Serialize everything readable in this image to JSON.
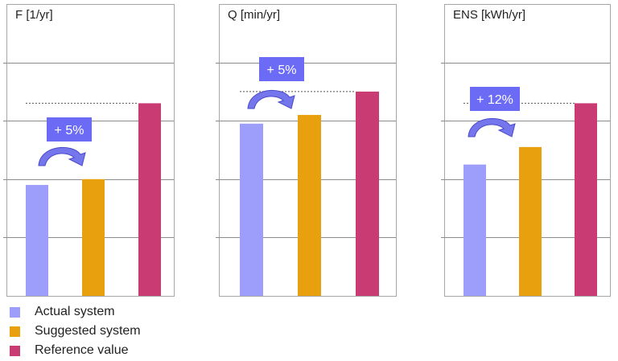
{
  "colors": {
    "actual": "#9d9dfc",
    "suggested": "#e8a00f",
    "reference": "#c93b73",
    "badge": "#6b6bf5",
    "arrow_fill": "#7676ec",
    "arrow_stroke": "#4a4acc",
    "grid": "#8c8c8c",
    "frame": "#a6a6a6"
  },
  "legend": [
    {
      "label": "Actual system",
      "color": "#9d9dfc"
    },
    {
      "label": "Suggested system",
      "color": "#e8a00f"
    },
    {
      "label": "Reference value",
      "color": "#c93b73"
    }
  ],
  "chart_data": [
    {
      "type": "bar",
      "title": "F [1/yr]",
      "categories": [
        "Actual system",
        "Suggested system",
        "Reference value"
      ],
      "values": [
        1.9,
        2.0,
        3.3
      ],
      "ylim": [
        0,
        5
      ],
      "grid": true,
      "annotation": "+ 5%"
    },
    {
      "type": "bar",
      "title": "Q [min/yr]",
      "categories": [
        "Actual system",
        "Suggested system",
        "Reference value"
      ],
      "values": [
        2.95,
        3.1,
        3.5
      ],
      "ylim": [
        0,
        5
      ],
      "grid": true,
      "annotation": "+ 5%"
    },
    {
      "type": "bar",
      "title": "ENS [kWh/yr]",
      "categories": [
        "Actual system",
        "Suggested system",
        "Reference value"
      ],
      "values": [
        2.25,
        2.55,
        3.3
      ],
      "ylim": [
        0,
        5
      ],
      "grid": true,
      "annotation": "+ 12%"
    }
  ]
}
